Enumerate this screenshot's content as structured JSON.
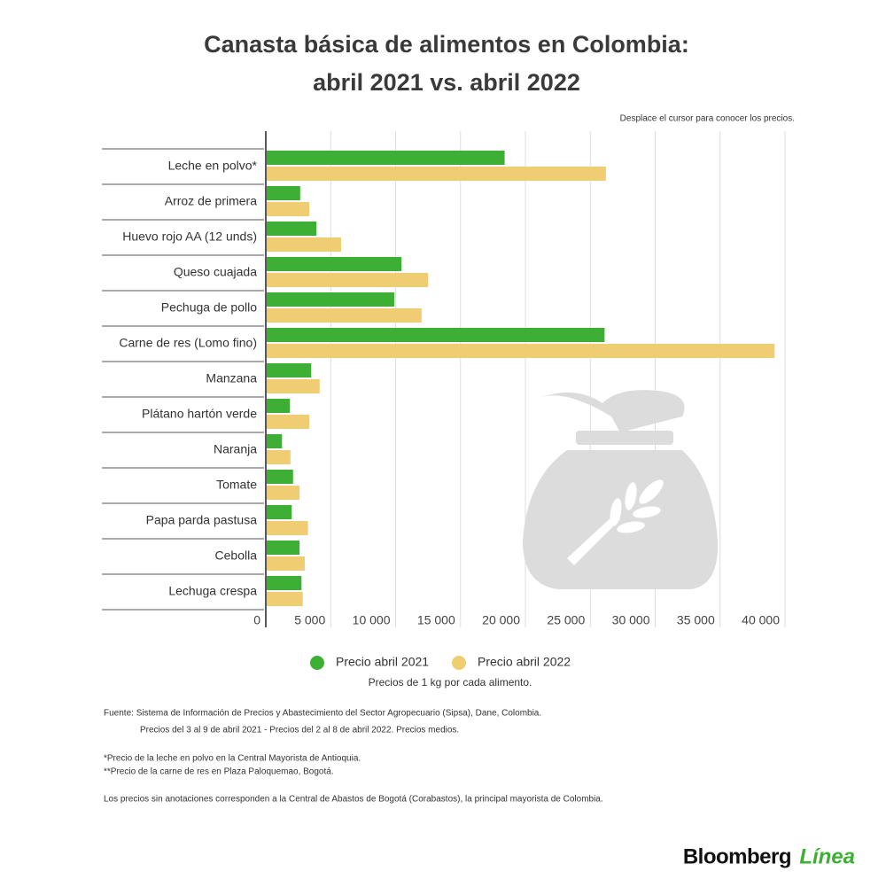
{
  "chart_data": {
    "type": "bar",
    "title": [
      "Canasta básica de alimentos en Colombia:",
      "abril 2021 vs. abril 2022"
    ],
    "hint": "Desplace el cursor para conocer los precios.",
    "categories": [
      "Leche en polvo*",
      "Arroz de primera",
      "Huevo rojo AA (12 unds)",
      "Queso cuajada",
      "Pechuga de pollo",
      "Carne de res (Lomo fino)",
      "Manzana",
      "Plátano hartón verde",
      "Naranja",
      "Tomate",
      "Papa parda pastusa",
      "Cebolla",
      "Lechuga crespa"
    ],
    "series": [
      {
        "name": "Precio abril 2021",
        "color": "#3daf35",
        "values": [
          18400,
          2650,
          3900,
          10450,
          9900,
          26100,
          3500,
          1850,
          1250,
          2100,
          2000,
          2600,
          2750
        ]
      },
      {
        "name": "Precio abril 2022",
        "color": "#f0cd72",
        "values": [
          26200,
          3350,
          5800,
          12500,
          12000,
          39200,
          4150,
          3350,
          1900,
          2600,
          3250,
          3000,
          2850
        ]
      }
    ],
    "xlim": [
      0,
      40000
    ],
    "xticks": [
      0,
      {
        "value": 5000,
        "label": "5 000"
      },
      {
        "value": 10000,
        "label": "10 000"
      },
      {
        "value": 15000,
        "label": "15 000"
      },
      {
        "value": 20000,
        "label": "20 000"
      },
      {
        "value": 25000,
        "label": "25 000"
      },
      {
        "value": 30000,
        "label": "30 000"
      },
      {
        "value": 35000,
        "label": "35 000"
      },
      {
        "value": 40000,
        "label": "40 000"
      }
    ],
    "grid": true,
    "note": "Precios de 1 kg por cada alimento.",
    "footer": [
      "Fuente: Sistema de Información de Precios y Abastecimiento del Sector Agropecuario (Sipsa), Dane, Colombia.",
      "Precios del 3 al 9 de abril 2021 - Precios del 2 al 8 de abril 2022. Precios medios.",
      "*Precio de la leche en polvo en la Central Mayorista de Antioquia.",
      "**Precio de la carne de res en Plaza Paloquemao, Bogotá.",
      "Los precios sin anotaciones corresponden a la Central de Abastos de Bogotá (Corabastos), la principal mayorista de Colombia."
    ],
    "logo": [
      "Bloomberg",
      "Línea"
    ]
  }
}
